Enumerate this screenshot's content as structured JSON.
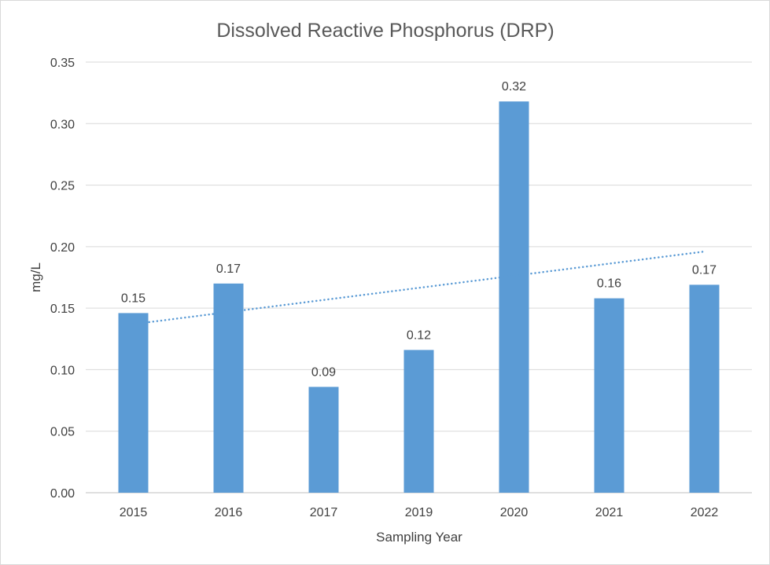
{
  "chart_data": {
    "type": "bar",
    "title": "Dissolved Reactive Phosphorus (DRP)",
    "xlabel": "Sampling Year",
    "ylabel": "mg/L",
    "categories": [
      "2015",
      "2016",
      "2017",
      "2019",
      "2020",
      "2021",
      "2022"
    ],
    "values": [
      0.146,
      0.17,
      0.086,
      0.116,
      0.318,
      0.158,
      0.169
    ],
    "data_labels": [
      "0.15",
      "0.17",
      "0.09",
      "0.12",
      "0.32",
      "0.16",
      "0.17"
    ],
    "ylim": [
      0,
      0.35
    ],
    "yticks": [
      "0.00",
      "0.05",
      "0.10",
      "0.15",
      "0.20",
      "0.25",
      "0.30",
      "0.35"
    ],
    "trendline": {
      "type": "linear",
      "style": "dotted",
      "start": 0.137,
      "end": 0.196
    },
    "grid": true,
    "legend": "none",
    "colors": {
      "bar": "#5b9bd5",
      "trendline": "#5b9bd5",
      "grid": "#d9d9d9",
      "text": "#404040"
    }
  }
}
